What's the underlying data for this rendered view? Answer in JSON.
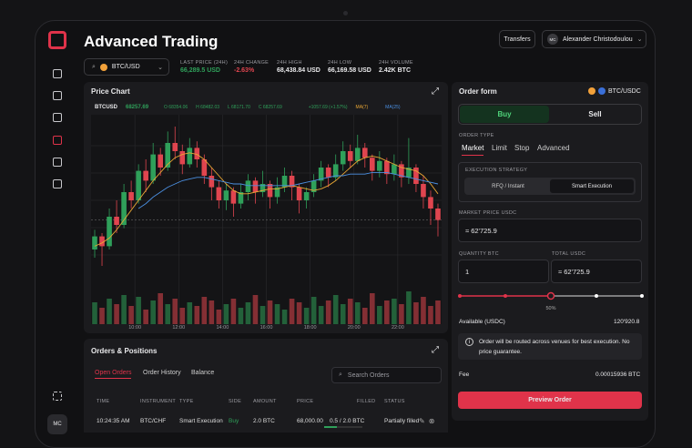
{
  "header": {
    "title": "Advanced Trading",
    "transfers": "Transfers",
    "user_initials": "MC",
    "user_name": "Alexander Christodoulou"
  },
  "ticker": {
    "pair": "BTC/USD"
  },
  "stats": [
    {
      "label": "LAST PRICE (24H)",
      "value": "66,289.5 USD"
    },
    {
      "label": "24H CHANGE",
      "value": "-2.63%"
    },
    {
      "label": "24H HIGH",
      "value": "68,438.84 USD"
    },
    {
      "label": "24H LOW",
      "value": "66,169.58 USD"
    },
    {
      "label": "24H VOLUME",
      "value": "2.42K BTC"
    }
  ],
  "price_chart": {
    "title": "Price Chart",
    "symbol": "BTCUSD",
    "price": "68257.69",
    "open": "O 68354.06",
    "high": "H 68482.03",
    "low": "L 68171.70",
    "close": "C 68257.69",
    "change": "+1057.69 (+1.57%)",
    "ma7_label": "MA(7)",
    "ma25_label": "MA(25)"
  },
  "chart_data": {
    "type": "candlestick",
    "up_color": "#2fa05a",
    "down_color": "#e0454f",
    "ma7_color": "#e8a634",
    "ma25_color": "#4b8fe0",
    "ylim": [
      0,
      100
    ],
    "vlim": [
      0,
      100
    ],
    "x_labels": [
      "10:00",
      "12:00",
      "14:00",
      "16:00",
      "18:00",
      "20:00",
      "22:00"
    ],
    "candles": [
      [
        20,
        28,
        32,
        15
      ],
      [
        28,
        22,
        30,
        10
      ],
      [
        22,
        40,
        45,
        20
      ],
      [
        40,
        35,
        50,
        30
      ],
      [
        35,
        55,
        60,
        33
      ],
      [
        55,
        50,
        62,
        45
      ],
      [
        50,
        68,
        72,
        48
      ],
      [
        68,
        62,
        75,
        55
      ],
      [
        62,
        78,
        85,
        60
      ],
      [
        78,
        70,
        82,
        65
      ],
      [
        70,
        85,
        92,
        68
      ],
      [
        85,
        80,
        95,
        75
      ],
      [
        80,
        72,
        84,
        66
      ],
      [
        72,
        82,
        88,
        70
      ],
      [
        82,
        75,
        86,
        70
      ],
      [
        75,
        65,
        78,
        60
      ],
      [
        65,
        58,
        70,
        50
      ],
      [
        58,
        50,
        62,
        45
      ],
      [
        50,
        56,
        60,
        44
      ],
      [
        56,
        48,
        58,
        40
      ],
      [
        48,
        55,
        60,
        45
      ],
      [
        55,
        62,
        66,
        50
      ],
      [
        62,
        55,
        64,
        48
      ],
      [
        55,
        60,
        68,
        52
      ],
      [
        60,
        52,
        62,
        45
      ],
      [
        52,
        58,
        64,
        48
      ],
      [
        58,
        65,
        70,
        55
      ],
      [
        65,
        58,
        68,
        50
      ],
      [
        58,
        50,
        60,
        42
      ],
      [
        50,
        55,
        58,
        45
      ],
      [
        55,
        62,
        66,
        52
      ],
      [
        62,
        70,
        74,
        58
      ],
      [
        70,
        64,
        72,
        58
      ],
      [
        64,
        72,
        78,
        62
      ],
      [
        72,
        80,
        86,
        68
      ],
      [
        80,
        74,
        84,
        70
      ],
      [
        74,
        82,
        90,
        72
      ],
      [
        82,
        76,
        85,
        70
      ],
      [
        76,
        68,
        78,
        62
      ],
      [
        68,
        74,
        80,
        64
      ],
      [
        74,
        66,
        76,
        60
      ],
      [
        66,
        72,
        78,
        62
      ],
      [
        72,
        64,
        74,
        58
      ],
      [
        64,
        70,
        88,
        60
      ],
      [
        70,
        60,
        72,
        55
      ],
      [
        60,
        52,
        65,
        45
      ],
      [
        52,
        45,
        56,
        35
      ],
      [
        45,
        38,
        48,
        28
      ]
    ],
    "ma7": [
      22,
      24,
      27,
      32,
      38,
      44,
      50,
      56,
      62,
      67,
      72,
      76,
      78,
      79,
      78,
      75,
      70,
      65,
      60,
      56,
      54,
      54,
      55,
      56,
      57,
      57,
      58,
      59,
      58,
      57,
      56,
      57,
      59,
      62,
      66,
      70,
      74,
      76,
      77,
      76,
      74,
      72,
      70,
      69,
      68,
      65,
      60,
      54
    ],
    "ma25": [
      null,
      null,
      null,
      null,
      null,
      null,
      45,
      48,
      52,
      55,
      58,
      60,
      62,
      63,
      64,
      64,
      63,
      62,
      61,
      60,
      60,
      59,
      59,
      59,
      59,
      59,
      59,
      59,
      60,
      61,
      62,
      63,
      64,
      65,
      65,
      66,
      66,
      66,
      67,
      67,
      67,
      66,
      65,
      64,
      63,
      62,
      61,
      60
    ],
    "volume": [
      60,
      45,
      70,
      55,
      80,
      50,
      75,
      40,
      65,
      85,
      55,
      70,
      45,
      60,
      50,
      75,
      65,
      40,
      55,
      70,
      45,
      60,
      80,
      50,
      65,
      55,
      40,
      70,
      60,
      45,
      75,
      50,
      65,
      80,
      55,
      70,
      60,
      45,
      85,
      50,
      65,
      70,
      55,
      90,
      60,
      75,
      50,
      65
    ]
  },
  "orders": {
    "title": "Orders & Positions",
    "tabs": [
      "Open Orders",
      "Order History",
      "Balance"
    ],
    "search": "Search Orders",
    "columns": [
      "TIME",
      "INSTRUMENT",
      "TYPE",
      "SIDE",
      "AMOUNT",
      "PRICE",
      "FILLED",
      "STATUS"
    ],
    "rows": [
      [
        "10:24:35 AM",
        "BTC/CHF",
        "Smart Execution",
        "Buy",
        "2.0 BTC",
        "68,000.00",
        "0.5 / 2.0 BTC",
        "Partially filled"
      ]
    ]
  },
  "order_form": {
    "title": "Order form",
    "pair": "BTC/USDC",
    "buy": "Buy",
    "sell": "Sell",
    "order_type_label": "ORDER TYPE",
    "order_types": [
      "Market",
      "Limit",
      "Stop",
      "Advanced"
    ],
    "strategy_label": "EXECUTION STRATEGY",
    "strategies": [
      "RFQ / Instant",
      "Smart Execution"
    ],
    "market_price_label": "MARKET PRICE USDC",
    "market_price": "≈ 62'725.9",
    "quantity_label": "QUANTITY BTC",
    "quantity": "1",
    "total_label": "TOTAL USDC",
    "total": "≈ 62'725.9",
    "slider": {
      "value": 50,
      "label": "50%"
    },
    "available_label": "Available (USDC)",
    "available": "120'920.8",
    "info": "Order will be routed across venues for best execution. No price guarantee.",
    "fee_label": "Fee",
    "fee": "0.00015936 BTC",
    "submit": "Preview Order"
  }
}
